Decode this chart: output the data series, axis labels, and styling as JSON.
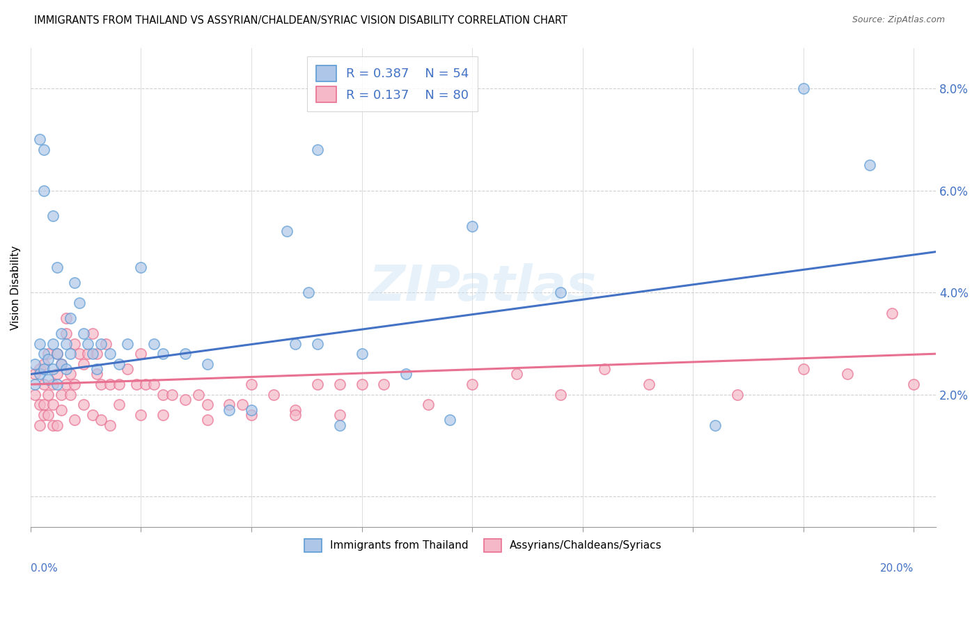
{
  "title": "IMMIGRANTS FROM THAILAND VS ASSYRIAN/CHALDEAN/SYRIAC VISION DISABILITY CORRELATION CHART",
  "source": "Source: ZipAtlas.com",
  "ylabel": "Vision Disability",
  "xlim": [
    0.0,
    0.205
  ],
  "ylim": [
    -0.006,
    0.088
  ],
  "yticks": [
    0.0,
    0.02,
    0.04,
    0.06,
    0.08
  ],
  "ytick_labels": [
    "",
    "2.0%",
    "4.0%",
    "6.0%",
    "8.0%"
  ],
  "xticks": [
    0.0,
    0.025,
    0.05,
    0.075,
    0.1,
    0.125,
    0.15,
    0.175,
    0.2
  ],
  "blue_color": "#AEC6E8",
  "pink_color": "#F5B8C8",
  "blue_edge_color": "#5B9BD5",
  "pink_edge_color": "#E87090",
  "blue_line_color": "#4472C4",
  "pink_line_color": "#E87090",
  "R_blue": "0.387",
  "N_blue": "54",
  "R_pink": "0.137",
  "N_pink": "80",
  "legend_text_color": "#4472C4",
  "watermark": "ZIPatlas",
  "blue_trend_x": [
    0.0,
    0.205
  ],
  "blue_trend_y": [
    0.024,
    0.048
  ],
  "pink_trend_x": [
    0.0,
    0.205
  ],
  "pink_trend_y": [
    0.022,
    0.028
  ],
  "blue_x": [
    0.001,
    0.001,
    0.002,
    0.002,
    0.003,
    0.003,
    0.004,
    0.004,
    0.005,
    0.005,
    0.006,
    0.006,
    0.007,
    0.007,
    0.008,
    0.008,
    0.009,
    0.009,
    0.01,
    0.011,
    0.012,
    0.013,
    0.014,
    0.015,
    0.016,
    0.018,
    0.02,
    0.022,
    0.025,
    0.028,
    0.03,
    0.035,
    0.04,
    0.045,
    0.05,
    0.06,
    0.065,
    0.07,
    0.075,
    0.085,
    0.095,
    0.1,
    0.12,
    0.155,
    0.175,
    0.19,
    0.065,
    0.063,
    0.058,
    0.002,
    0.003,
    0.003,
    0.005,
    0.006
  ],
  "blue_y": [
    0.026,
    0.022,
    0.03,
    0.024,
    0.028,
    0.025,
    0.027,
    0.023,
    0.03,
    0.025,
    0.028,
    0.022,
    0.032,
    0.026,
    0.03,
    0.025,
    0.035,
    0.028,
    0.042,
    0.038,
    0.032,
    0.03,
    0.028,
    0.025,
    0.03,
    0.028,
    0.026,
    0.03,
    0.045,
    0.03,
    0.028,
    0.028,
    0.026,
    0.017,
    0.017,
    0.03,
    0.03,
    0.014,
    0.028,
    0.024,
    0.015,
    0.053,
    0.04,
    0.014,
    0.08,
    0.065,
    0.068,
    0.04,
    0.052,
    0.07,
    0.068,
    0.06,
    0.055,
    0.045
  ],
  "pink_x": [
    0.001,
    0.001,
    0.002,
    0.002,
    0.002,
    0.003,
    0.003,
    0.003,
    0.004,
    0.004,
    0.005,
    0.005,
    0.006,
    0.006,
    0.007,
    0.007,
    0.008,
    0.008,
    0.009,
    0.009,
    0.01,
    0.01,
    0.011,
    0.012,
    0.013,
    0.014,
    0.015,
    0.015,
    0.016,
    0.017,
    0.018,
    0.02,
    0.022,
    0.024,
    0.025,
    0.026,
    0.028,
    0.03,
    0.032,
    0.035,
    0.038,
    0.04,
    0.045,
    0.048,
    0.05,
    0.055,
    0.06,
    0.065,
    0.07,
    0.075,
    0.08,
    0.09,
    0.1,
    0.11,
    0.12,
    0.13,
    0.14,
    0.16,
    0.175,
    0.185,
    0.195,
    0.2,
    0.003,
    0.004,
    0.005,
    0.006,
    0.007,
    0.008,
    0.01,
    0.012,
    0.014,
    0.016,
    0.018,
    0.02,
    0.025,
    0.03,
    0.04,
    0.05,
    0.06,
    0.07
  ],
  "pink_y": [
    0.02,
    0.024,
    0.018,
    0.025,
    0.014,
    0.022,
    0.018,
    0.026,
    0.02,
    0.028,
    0.022,
    0.018,
    0.024,
    0.028,
    0.02,
    0.026,
    0.022,
    0.032,
    0.02,
    0.024,
    0.022,
    0.03,
    0.028,
    0.026,
    0.028,
    0.032,
    0.024,
    0.028,
    0.022,
    0.03,
    0.022,
    0.022,
    0.025,
    0.022,
    0.028,
    0.022,
    0.022,
    0.02,
    0.02,
    0.019,
    0.02,
    0.018,
    0.018,
    0.018,
    0.022,
    0.02,
    0.017,
    0.022,
    0.022,
    0.022,
    0.022,
    0.018,
    0.022,
    0.024,
    0.02,
    0.025,
    0.022,
    0.02,
    0.025,
    0.024,
    0.036,
    0.022,
    0.016,
    0.016,
    0.014,
    0.014,
    0.017,
    0.035,
    0.015,
    0.018,
    0.016,
    0.015,
    0.014,
    0.018,
    0.016,
    0.016,
    0.015,
    0.016,
    0.016,
    0.016
  ]
}
